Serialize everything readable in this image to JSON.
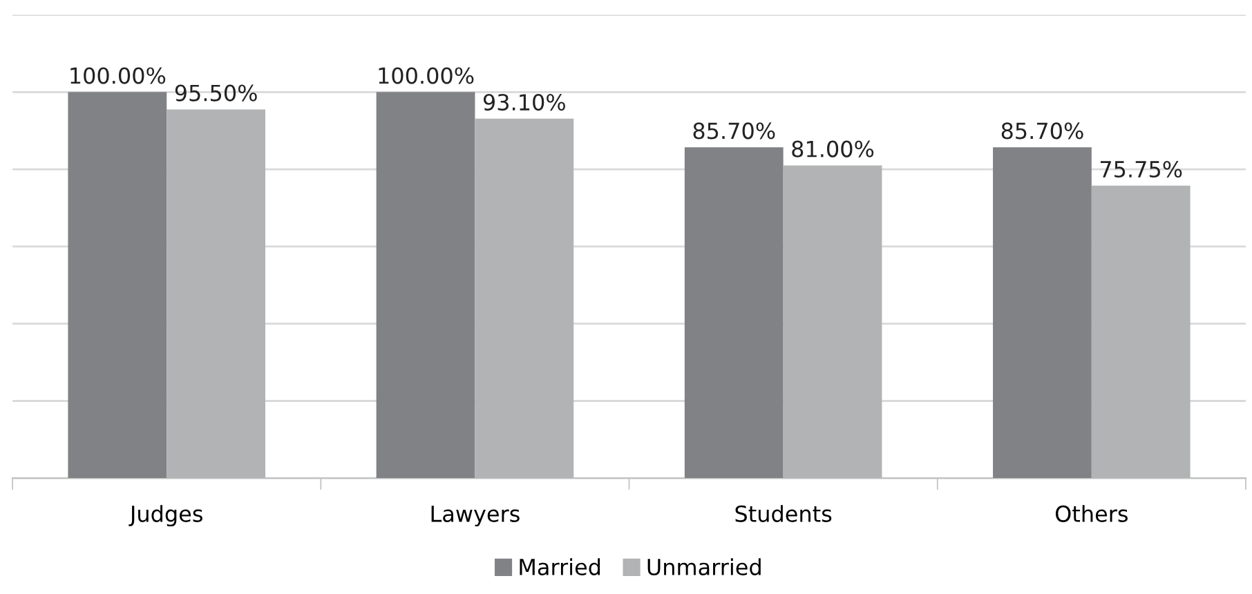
{
  "chart_data": {
    "type": "bar",
    "categories": [
      "Judges",
      "Lawyers",
      "Students",
      "Others"
    ],
    "series": [
      {
        "name": "Married",
        "color": "#808285",
        "values": [
          100,
          100,
          85.7,
          85.7
        ],
        "value_labels": [
          "100.00%",
          "100.00%",
          "85.70%",
          "85.70%"
        ]
      },
      {
        "name": "Unmarried",
        "color": "#b1b3b4",
        "values": [
          95.5,
          93.1,
          81.0,
          75.75
        ],
        "value_labels": [
          "95.50%",
          "93.10%",
          "81.00%",
          "75.75%"
        ]
      }
    ],
    "ylim": [
      0,
      120
    ],
    "yticks": [
      {
        "value": 0,
        "label": null
      },
      {
        "value": 20,
        "label": null
      },
      {
        "value": 40,
        "label": null
      },
      {
        "value": 60,
        "label": null
      },
      {
        "value": 80,
        "label": null
      },
      {
        "value": 100,
        "label": null
      },
      {
        "value": 120,
        "label": null
      }
    ],
    "grid": "y",
    "legend": "bottom",
    "tick_labels": "x"
  }
}
